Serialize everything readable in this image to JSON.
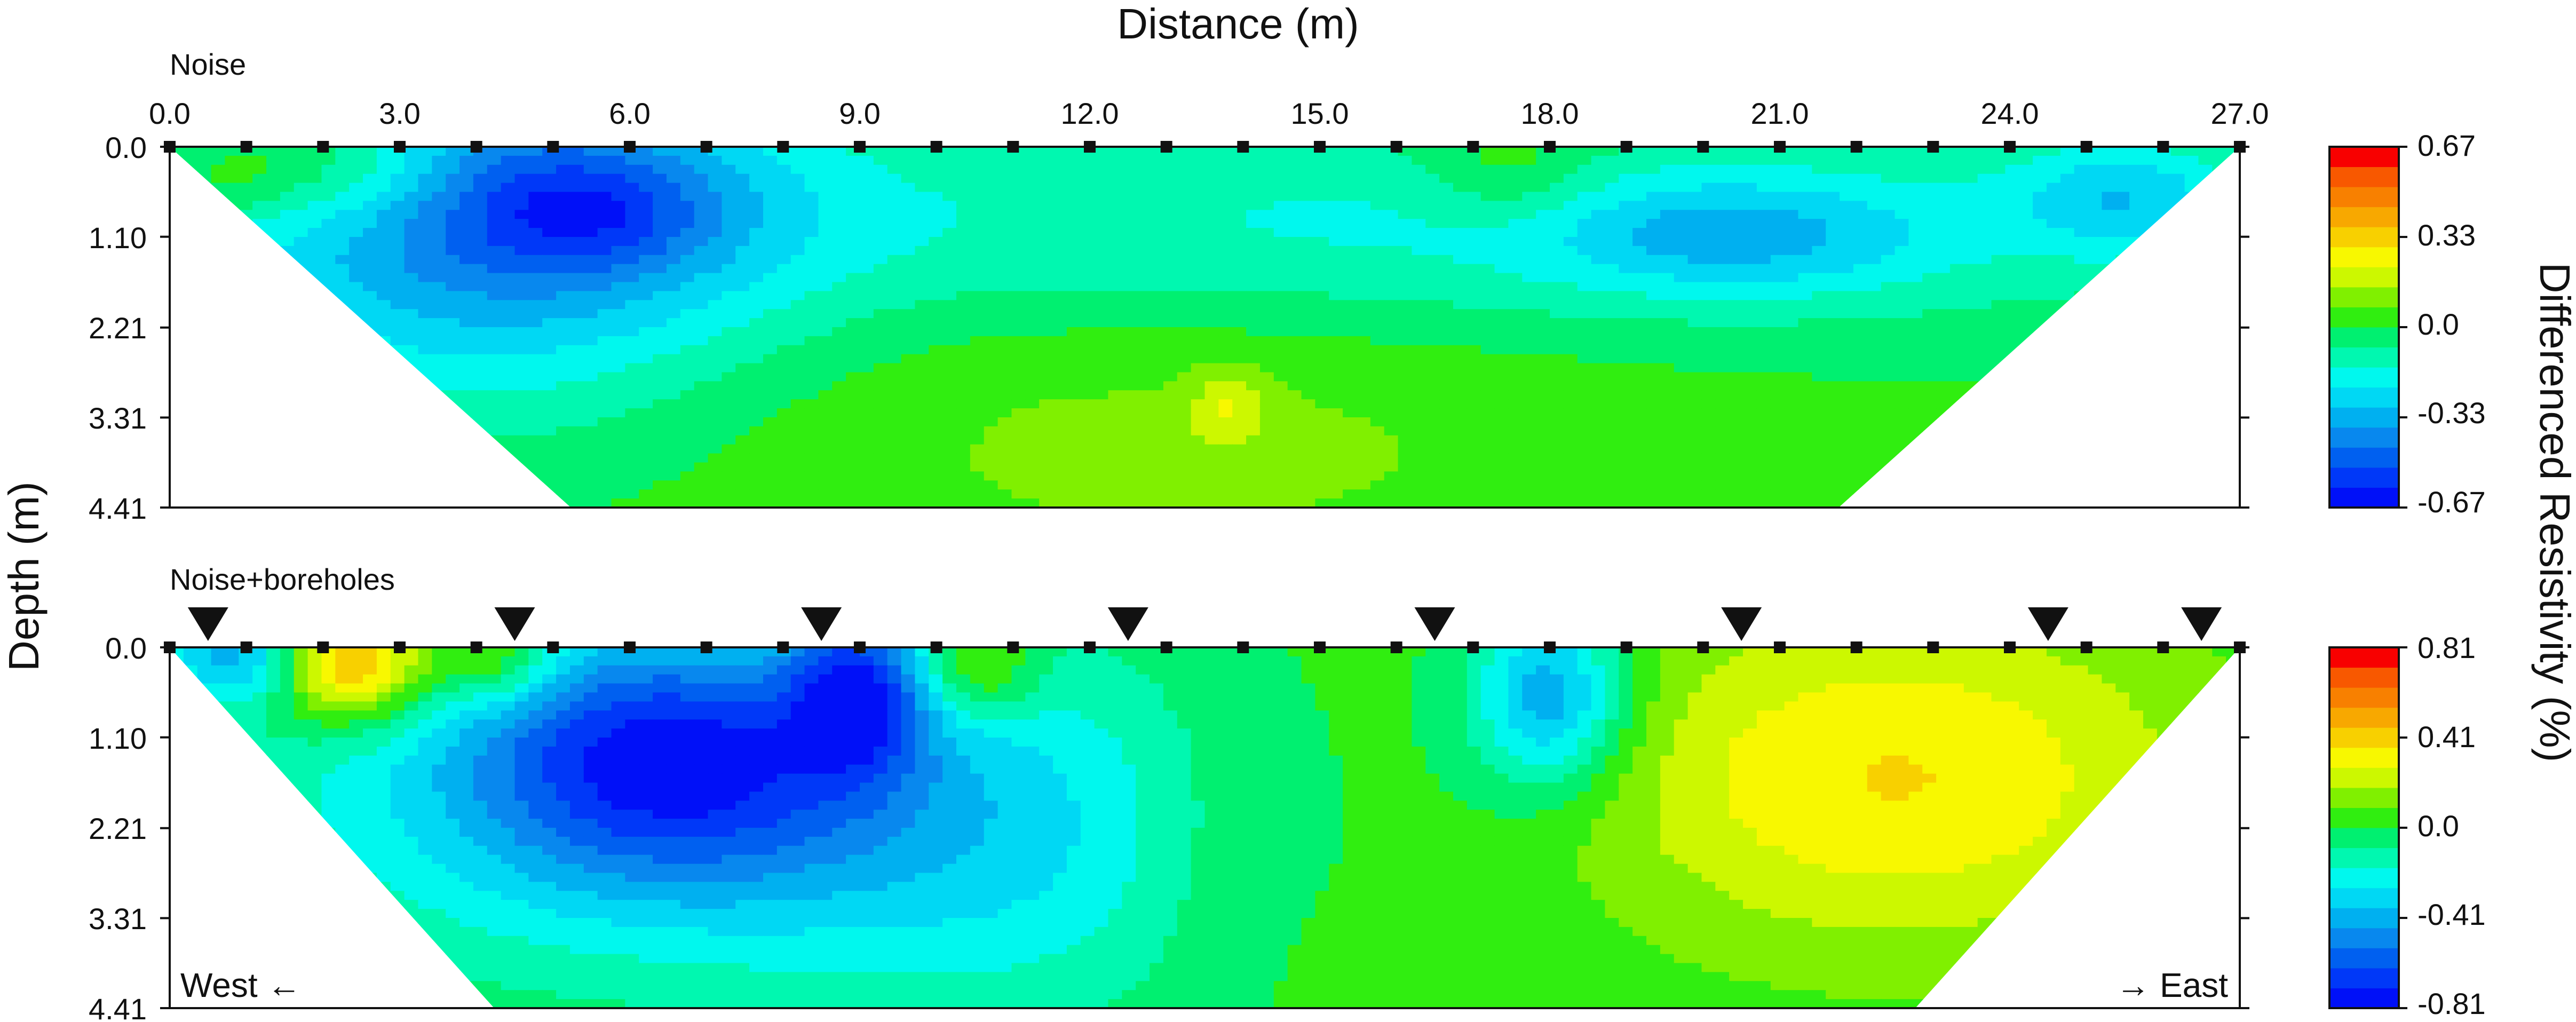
{
  "chart_data": {
    "type": "heatmap",
    "title": "Distance (m)",
    "xlabel": "Distance (m)",
    "ylabel": "Depth (m)",
    "colorbar_label": "Differenced Resistivity (%)",
    "x_ticks": [
      "0.0",
      "3.0",
      "6.0",
      "9.0",
      "12.0",
      "15.0",
      "18.0",
      "21.0",
      "24.0",
      "27.0"
    ],
    "y_ticks": [
      "0.0",
      "1.10",
      "2.21",
      "3.31",
      "4.41"
    ],
    "xlim": [
      0,
      27
    ],
    "ylim": [
      0,
      4.41
    ],
    "electrode_spacing_m": 1.0,
    "colors": {
      "scale": [
        "#0010f8",
        "#0038f8",
        "#0060f0",
        "#0888ee",
        "#00b0f0",
        "#00d8f4",
        "#00f8ee",
        "#00f8b0",
        "#00f070",
        "#30ee10",
        "#80f000",
        "#ccf800",
        "#f8f800",
        "#f8d000",
        "#f8a800",
        "#f88000",
        "#f85800",
        "#f80000"
      ],
      "background": "#78ee00",
      "frame": "#111111",
      "marker": "#111111"
    },
    "panels": [
      {
        "name": "Noise",
        "label": "Noise",
        "range": [
          -0.67,
          0.67
        ],
        "colorbar_ticks": [
          "0.67",
          "0.33",
          "0.0",
          "-0.33",
          "-0.67"
        ],
        "boreholes_m": [],
        "direction_labels": {
          "west": "",
          "east": ""
        },
        "blobs": [
          {
            "x": 4.2,
            "d": 0.7,
            "rx": 3.8,
            "ry": 2.4,
            "v": -0.62
          },
          {
            "x": 5.5,
            "d": 0.8,
            "rx": 1.6,
            "ry": 0.7,
            "v": -0.3
          },
          {
            "x": 16.0,
            "d": 1.0,
            "rx": 12.0,
            "ry": 1.4,
            "v": -0.3
          },
          {
            "x": 20.5,
            "d": 1.1,
            "rx": 2.5,
            "ry": 0.7,
            "v": -0.3
          },
          {
            "x": 25.5,
            "d": 0.6,
            "rx": 1.5,
            "ry": 0.7,
            "v": -0.33
          },
          {
            "x": 13.0,
            "d": 3.2,
            "rx": 6.0,
            "ry": 2.2,
            "v": 0.12
          },
          {
            "x": 13.8,
            "d": 3.2,
            "rx": 0.5,
            "ry": 0.5,
            "v": 0.22
          },
          {
            "x": 2.2,
            "d": 0.2,
            "rx": 1.6,
            "ry": 0.8,
            "v": 0.35
          },
          {
            "x": 17.5,
            "d": 0.3,
            "rx": 1.2,
            "ry": 0.7,
            "v": 0.2
          },
          {
            "x": 0.8,
            "d": 0.4,
            "rx": 0.8,
            "ry": 0.5,
            "v": 0.15
          }
        ]
      },
      {
        "name": "Noise+boreholes",
        "label": "Noise+boreholes",
        "range": [
          -0.81,
          0.81
        ],
        "colorbar_ticks": [
          "0.81",
          "0.41",
          "0.0",
          "-0.41",
          "-0.81"
        ],
        "boreholes_m": [
          0.5,
          4.5,
          8.5,
          12.5,
          16.5,
          20.5,
          24.5,
          26.5
        ],
        "direction_labels": {
          "west": "West ←",
          "east": "→ East"
        },
        "blobs": [
          {
            "x": 6.5,
            "d": 1.9,
            "rx": 6.0,
            "ry": 2.2,
            "v": -0.4
          },
          {
            "x": 6.4,
            "d": 1.3,
            "rx": 2.6,
            "ry": 1.5,
            "v": -0.62
          },
          {
            "x": 18.0,
            "d": 0.6,
            "rx": 1.0,
            "ry": 1.1,
            "v": -0.6
          },
          {
            "x": 9.0,
            "d": 0.5,
            "rx": 0.9,
            "ry": 1.0,
            "v": -0.6
          },
          {
            "x": 1.0,
            "d": 0.1,
            "rx": 1.0,
            "ry": 0.6,
            "v": -0.55
          },
          {
            "x": 22.5,
            "d": 1.6,
            "rx": 4.0,
            "ry": 2.1,
            "v": 0.42
          },
          {
            "x": 2.3,
            "d": 0.2,
            "rx": 1.1,
            "ry": 0.7,
            "v": 0.75
          },
          {
            "x": 4.3,
            "d": 0.2,
            "rx": 0.7,
            "ry": 0.5,
            "v": 0.35
          },
          {
            "x": 10.5,
            "d": 0.3,
            "rx": 0.8,
            "ry": 0.6,
            "v": 0.35
          },
          {
            "x": 14.0,
            "d": 2.4,
            "rx": 1.8,
            "ry": 2.2,
            "v": 0.15
          },
          {
            "x": 11.5,
            "d": 2.5,
            "rx": 4.0,
            "ry": 2.5,
            "v": -0.22
          }
        ]
      }
    ]
  }
}
